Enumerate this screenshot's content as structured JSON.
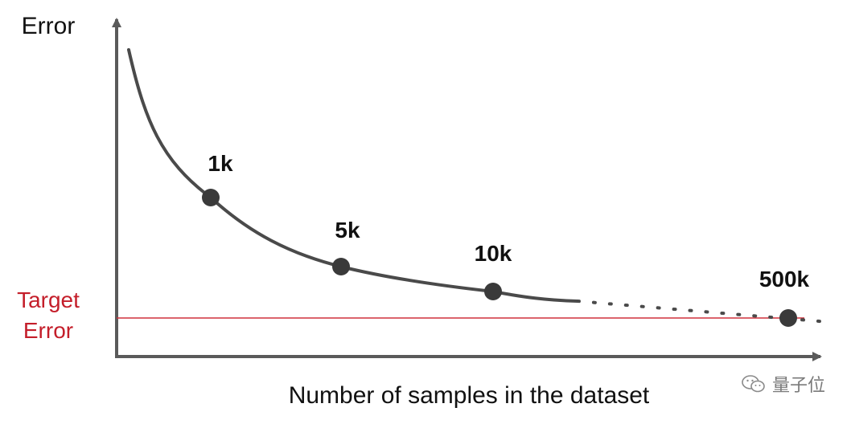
{
  "chart_data": {
    "type": "line",
    "ylabel": "Error",
    "xlabel": "Number of samples in the dataset",
    "target_label": [
      "Target",
      "Error"
    ],
    "target_color": "#d0303c",
    "curve_color": "#4a4a4a",
    "axis_color": "#5a5a5a",
    "points": [
      {
        "label": "1k"
      },
      {
        "label": "5k"
      },
      {
        "label": "10k"
      },
      {
        "label": "500k"
      }
    ]
  },
  "watermark": {
    "text": "量子位",
    "icon": "wechat-icon"
  }
}
